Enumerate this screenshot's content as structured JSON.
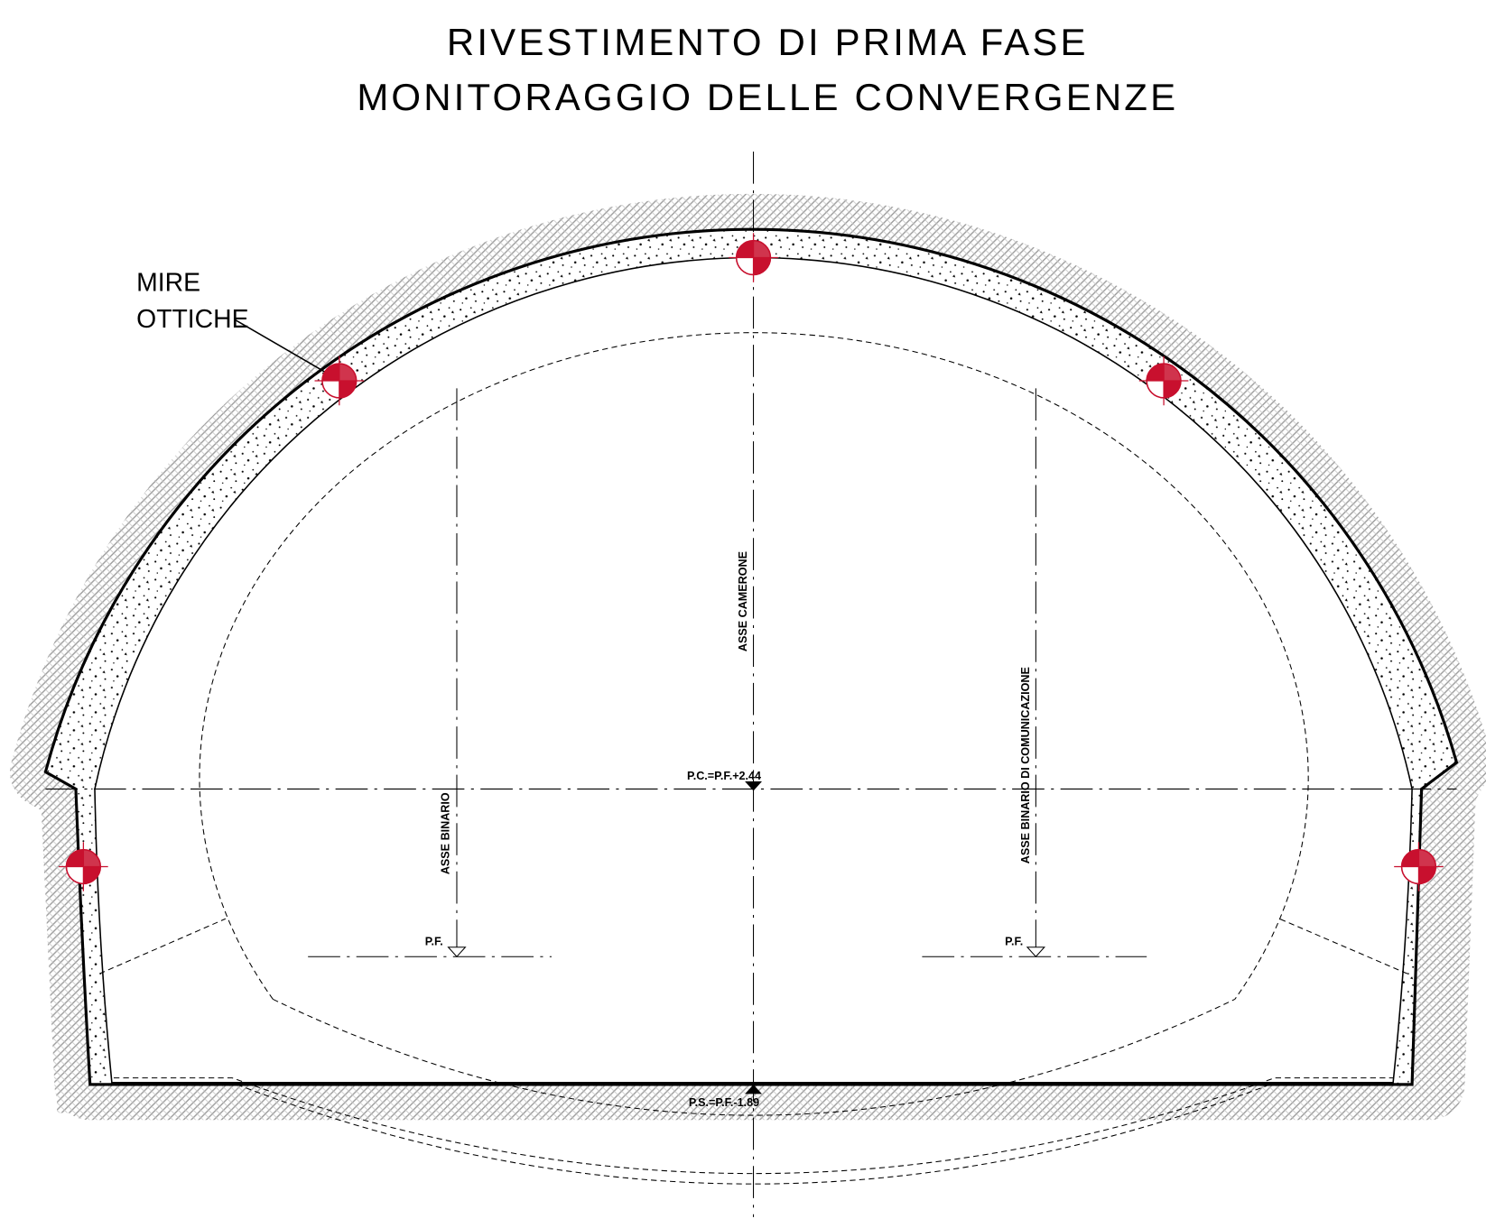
{
  "header": {
    "title_line1": "RIVESTIMENTO DI PRIMA FASE",
    "title_line2": "MONITORAGGIO DELLE CONVERGENZE"
  },
  "annotations": {
    "targets_line1": "MIRE",
    "targets_line2": "OTTICHE",
    "axis_cavern": "ASSE CAMERONE",
    "axis_track": "ASSE BINARIO",
    "axis_crossover": "ASSE BINARIO DI COMUNICAZIONE",
    "crown_level": "P.C.=P.F.+2.44",
    "rail_level_left": "P.F.",
    "rail_level_right": "P.F.",
    "invert_level": "P.S.=P.F.-1.89"
  }
}
